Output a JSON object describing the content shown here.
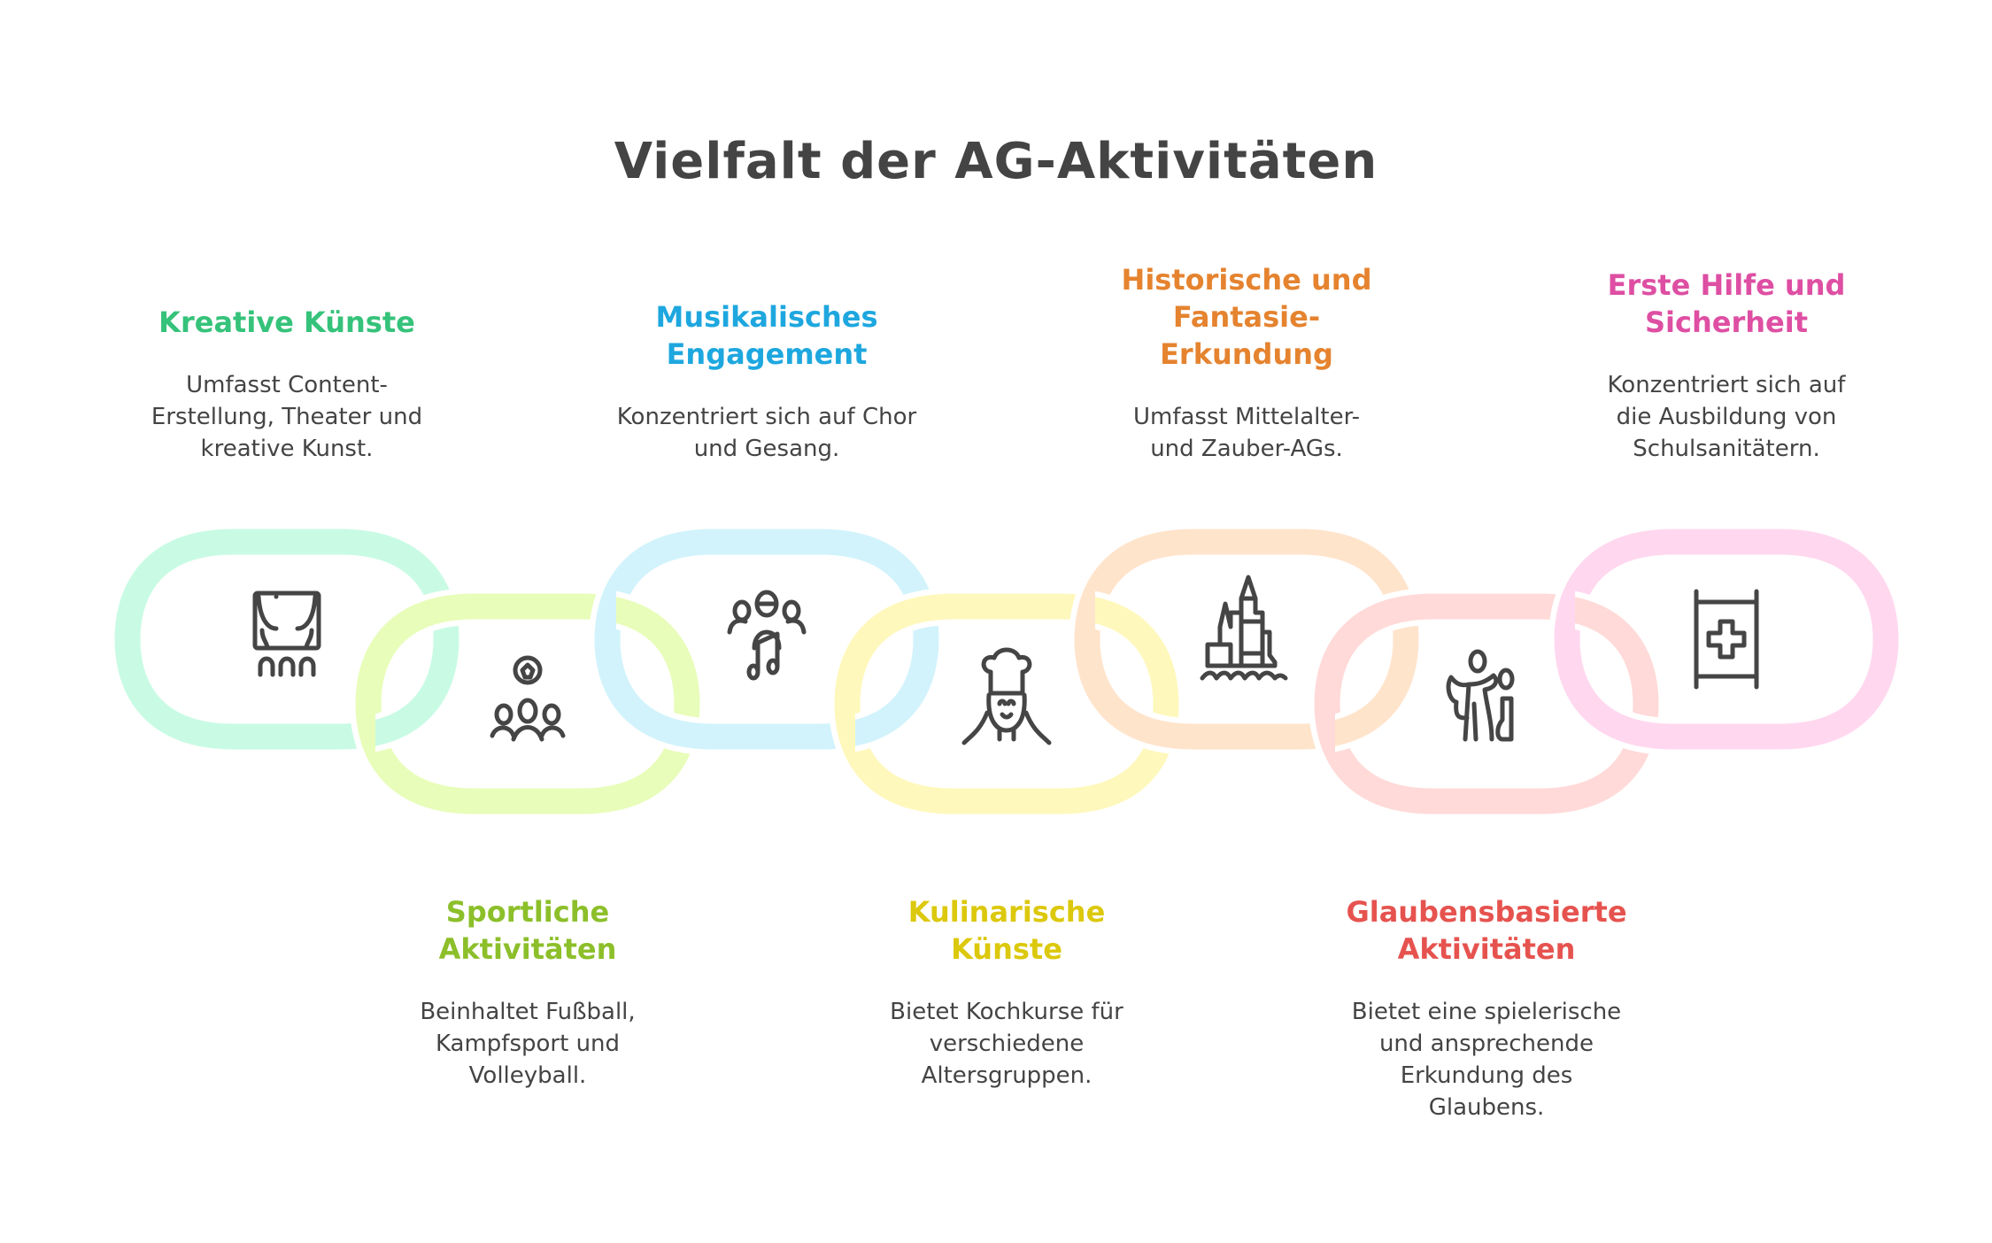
{
  "title": "Vielfalt der AG-Aktivitäten",
  "items": [
    {
      "title_lines": [
        "Kreative Künste"
      ],
      "desc_lines": [
        "Umfasst Content-",
        "Erstellung, Theater und",
        "kreative Kunst."
      ],
      "color": "#35c27a",
      "ring_color": "#c9fbe4",
      "icon": "theater-stage-icon",
      "position": "top"
    },
    {
      "title_lines": [
        "Sportliche",
        "Aktivitäten"
      ],
      "desc_lines": [
        "Beinhaltet Fußball,",
        "Kampfsport und",
        "Volleyball."
      ],
      "color": "#8cbf2a",
      "ring_color": "#e8fdb9",
      "icon": "soccer-team-icon",
      "position": "bottom"
    },
    {
      "title_lines": [
        "Musikalisches",
        "Engagement"
      ],
      "desc_lines": [
        "Konzentriert sich auf Chor",
        "und Gesang."
      ],
      "color": "#1ea7df",
      "ring_color": "#d2f3fc",
      "icon": "choir-music-note-icon",
      "position": "top"
    },
    {
      "title_lines": [
        "Kulinarische",
        "Künste"
      ],
      "desc_lines": [
        "Bietet Kochkurse für",
        "verschiedene",
        "Altersgruppen."
      ],
      "color": "#dcc80c",
      "ring_color": "#fff8bc",
      "icon": "chef-icon",
      "position": "bottom"
    },
    {
      "title_lines": [
        "Historische und",
        "Fantasie-",
        "Erkundung"
      ],
      "desc_lines": [
        "Umfasst Mittelalter-",
        "und Zauber-AGs."
      ],
      "color": "#e5832f",
      "ring_color": "#ffe4cc",
      "icon": "castle-icon",
      "position": "top"
    },
    {
      "title_lines": [
        "Glaubensbasierte",
        "Aktivitäten"
      ],
      "desc_lines": [
        "Bietet eine spielerische",
        "und ansprechende",
        "Erkundung des",
        "Glaubens."
      ],
      "color": "#e6534f",
      "ring_color": "#ffdad8",
      "icon": "angel-child-icon",
      "position": "bottom"
    },
    {
      "title_lines": [
        "Erste Hilfe und",
        "Sicherheit"
      ],
      "desc_lines": [
        "Konzentriert sich auf",
        "die Ausbildung von",
        "Schulsanitätern."
      ],
      "color": "#de4fa3",
      "ring_color": "#ffd8ef",
      "icon": "first-aid-stretcher-icon",
      "position": "top"
    }
  ]
}
